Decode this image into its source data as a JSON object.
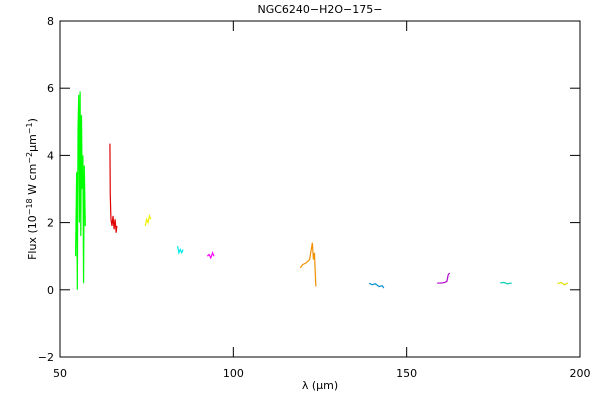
{
  "chart_data": {
    "type": "line",
    "title": "NGC6240−H2O−175−",
    "xlabel": [
      {
        "text": "λ ("
      },
      {
        "text": "μm"
      },
      {
        "text": ")"
      }
    ],
    "ylabel": [
      {
        "text": "Flux (10"
      },
      {
        "text": "−18",
        "sup": true
      },
      {
        "text": " W cm"
      },
      {
        "text": "−2",
        "sup": true
      },
      {
        "text": "μm"
      },
      {
        "text": "−1",
        "sup": true
      },
      {
        "text": ")"
      }
    ],
    "xlim": [
      50,
      200
    ],
    "xticks": [
      50,
      100,
      150,
      200
    ],
    "ylim": [
      -2,
      8
    ],
    "yticks": [
      {
        "value": -2,
        "label": "−2"
      },
      0,
      2,
      4,
      6,
      8
    ],
    "series": [
      {
        "color": "#00ff00",
        "x": [
          54.5,
          54.8,
          55.0,
          55.2,
          55.4,
          55.6,
          55.8,
          56.0,
          56.2,
          56.4,
          56.6,
          56.8,
          57.0,
          57.3
        ],
        "values": [
          1.0,
          3.5,
          0.0,
          4.8,
          5.8,
          2.0,
          5.9,
          1.6,
          5.2,
          3.0,
          4.0,
          0.2,
          3.7,
          1.9
        ]
      },
      {
        "color": "#e00000",
        "x": [
          64.4,
          64.5,
          64.7,
          65.0,
          65.3,
          65.6,
          65.9,
          66.2,
          66.4
        ],
        "values": [
          4.35,
          2.8,
          2.1,
          1.9,
          2.2,
          1.8,
          2.1,
          1.7,
          1.9
        ]
      },
      {
        "color": "#f0f000",
        "x": [
          74.6,
          75.0,
          75.4,
          75.8,
          76.2
        ],
        "values": [
          1.9,
          2.1,
          2.0,
          2.2,
          2.1
        ]
      },
      {
        "color": "#00e8e8",
        "x": [
          83.9,
          84.3,
          84.7,
          85.1,
          85.5
        ],
        "values": [
          1.3,
          1.1,
          1.2,
          1.1,
          1.2
        ]
      },
      {
        "color": "#ff00ff",
        "x": [
          92.5,
          93.0,
          93.5,
          94.0,
          94.4
        ],
        "values": [
          1.0,
          1.05,
          0.95,
          1.1,
          1.0
        ]
      },
      {
        "color": "#f09000",
        "x": [
          119.3,
          120,
          121,
          122,
          122.8,
          123.1,
          123.4,
          123.8
        ],
        "values": [
          0.65,
          0.75,
          0.8,
          0.9,
          1.4,
          0.9,
          1.1,
          0.1
        ]
      },
      {
        "color": "#0090d0",
        "x": [
          139.2,
          140,
          141,
          142,
          143,
          143.4
        ],
        "values": [
          0.2,
          0.15,
          0.18,
          0.1,
          0.12,
          0.05
        ]
      },
      {
        "color": "#b000d0",
        "x": [
          158.8,
          160,
          161,
          161.6,
          162,
          162.4
        ],
        "values": [
          0.2,
          0.2,
          0.22,
          0.25,
          0.45,
          0.5
        ]
      },
      {
        "color": "#00d0b0",
        "x": [
          177,
          178,
          179,
          180.3
        ],
        "values": [
          0.2,
          0.22,
          0.18,
          0.2
        ]
      },
      {
        "color": "#e0e000",
        "x": [
          193.5,
          194.5,
          195.5,
          196.5
        ],
        "values": [
          0.18,
          0.22,
          0.15,
          0.2
        ]
      }
    ]
  }
}
